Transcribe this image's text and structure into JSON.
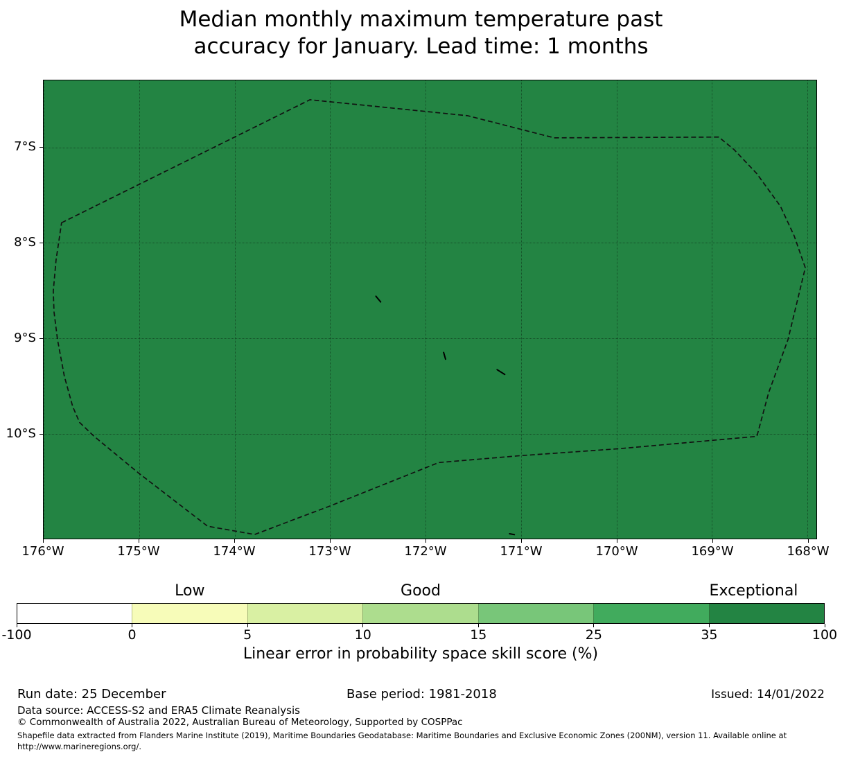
{
  "title": {
    "line1": "Median monthly maximum temperature past",
    "line2": "accuracy for January. Lead time: 1 months"
  },
  "axes": {
    "xlim": [
      176,
      167.906
    ],
    "ylim": [
      6.297,
      11.101
    ],
    "x_ticks": [
      {
        "label": "176°W",
        "lon": 176
      },
      {
        "label": "175°W",
        "lon": 175
      },
      {
        "label": "174°W",
        "lon": 174
      },
      {
        "label": "173°W",
        "lon": 173
      },
      {
        "label": "172°W",
        "lon": 172
      },
      {
        "label": "171°W",
        "lon": 171
      },
      {
        "label": "170°W",
        "lon": 170
      },
      {
        "label": "169°W",
        "lon": 169
      },
      {
        "label": "168°W",
        "lon": 168
      }
    ],
    "y_ticks": [
      {
        "label": "7°S",
        "lat": 7
      },
      {
        "label": "8°S",
        "lat": 8
      },
      {
        "label": "9°S",
        "lat": 9
      },
      {
        "label": "10°S",
        "lat": 10
      }
    ]
  },
  "map": {
    "fill_color": "#238443",
    "boundary_color": "#111111"
  },
  "chart_data": {
    "type": "choropleth_map",
    "title": "Median monthly maximum temperature past accuracy for January. Lead time: 1 months",
    "value_shown": "Linear error in probability space skill score (%)",
    "region_value_band": "35-100 (Exceptional)",
    "lon_axis_degW": [
      176,
      175,
      174,
      173,
      172,
      171,
      170,
      169,
      168
    ],
    "lat_axis_degS": [
      7,
      8,
      9,
      10
    ],
    "eez_boundary_lonlat": [
      [
        175.812,
        7.79
      ],
      [
        173.21,
        6.5
      ],
      [
        171.558,
        6.667
      ],
      [
        170.652,
        6.899
      ],
      [
        168.928,
        6.891
      ],
      [
        168.768,
        7.022
      ],
      [
        168.529,
        7.275
      ],
      [
        168.283,
        7.616
      ],
      [
        168.138,
        7.928
      ],
      [
        168.022,
        8.261
      ],
      [
        168.203,
        9.014
      ],
      [
        168.406,
        9.572
      ],
      [
        168.529,
        10.029
      ],
      [
        169.007,
        10.072
      ],
      [
        169.978,
        10.159
      ],
      [
        171.014,
        10.232
      ],
      [
        171.862,
        10.304
      ],
      [
        173.022,
        10.768
      ],
      [
        173.333,
        10.884
      ],
      [
        173.79,
        11.058
      ],
      [
        174.283,
        10.971
      ],
      [
        175.007,
        10.413
      ],
      [
        175.471,
        10.029
      ],
      [
        175.623,
        9.884
      ],
      [
        175.696,
        9.717
      ],
      [
        175.783,
        9.399
      ],
      [
        175.855,
        9.014
      ],
      [
        175.891,
        8.725
      ],
      [
        175.899,
        8.507
      ],
      [
        175.87,
        8.181
      ]
    ],
    "islands_lonlat": [
      [
        [
          172.52,
          8.56
        ],
        [
          172.47,
          8.62
        ]
      ],
      [
        [
          171.81,
          9.15
        ],
        [
          171.79,
          9.22
        ]
      ],
      [
        [
          171.25,
          9.33
        ],
        [
          171.17,
          9.38
        ]
      ],
      [
        [
          171.12,
          11.05
        ],
        [
          171.07,
          11.06
        ]
      ]
    ]
  },
  "colorbar": {
    "bounds": [
      -100,
      0,
      5,
      10,
      15,
      25,
      35,
      100
    ],
    "colors": [
      "#ffffff",
      "#f7fcb9",
      "#d9f0a3",
      "#addd8e",
      "#78c679",
      "#41ab5d",
      "#238443"
    ],
    "zones": [
      {
        "label": "Low",
        "center_value": 2.5
      },
      {
        "label": "Good",
        "center_value": 12.5
      },
      {
        "label": "Exceptional",
        "center_value": 60
      }
    ],
    "axis_label": "Linear error in probability space skill score (%)"
  },
  "footer": {
    "run_date": "Run date: 25 December",
    "base_period": "Base period: 1981-2018",
    "issued": "Issued: 14/01/2022",
    "data_source": "Data source: ACCESS-S2 and ERA5 Climate Reanalysis",
    "copyright": "© Commonwealth of Australia 2022, Australian Bureau of Meteorology, Supported by COSPPac",
    "shapefile_line1": "Shapefile data extracted from Flanders Marine Institute (2019), Maritime Boundaries Geodatabase: Maritime Boundaries and Exclusive Economic Zones (200NM), version 11. Available online at",
    "shapefile_line2": "http://www.marineregions.org/."
  }
}
